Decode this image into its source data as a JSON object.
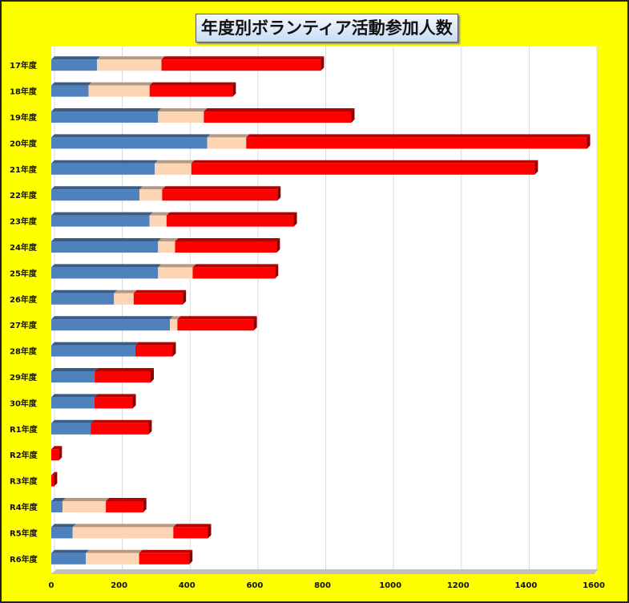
{
  "chart_data": {
    "type": "bar",
    "stacked": true,
    "orientation": "horizontal",
    "title": "年度別ボランティア活動参加人数",
    "categories": [
      "17年度",
      "18年度",
      "19年度",
      "20年度",
      "21年度",
      "22年度",
      "23年度",
      "24年度",
      "25年度",
      "26年度",
      "27年度",
      "28年度",
      "29年度",
      "30年度",
      "R1年度",
      "R2年度",
      "R3年度",
      "R4年度",
      "R5年度",
      "R6年度"
    ],
    "series": [
      {
        "color": "#4f81bd",
        "values": [
          135,
          110,
          315,
          460,
          305,
          260,
          290,
          315,
          315,
          185,
          350,
          248,
          128,
          127,
          117,
          0,
          0,
          33,
          63,
          102
        ]
      },
      {
        "color": "#fcd5b5",
        "values": [
          190,
          180,
          135,
          115,
          108,
          67,
          50,
          50,
          102,
          58,
          22,
          0,
          0,
          0,
          0,
          0,
          0,
          128,
          297,
          157
        ]
      },
      {
        "color": "#ff0000",
        "values": [
          470,
          245,
          435,
          1005,
          1013,
          340,
          375,
          300,
          243,
          145,
          225,
          110,
          165,
          113,
          170,
          22,
          8,
          110,
          102,
          148
        ]
      }
    ],
    "xlim": [
      0,
      1600
    ],
    "xticks": [
      "0",
      "200",
      "400",
      "600",
      "800",
      "1000",
      "1200",
      "1400",
      "1600"
    ],
    "grid": true,
    "legend": "none"
  }
}
